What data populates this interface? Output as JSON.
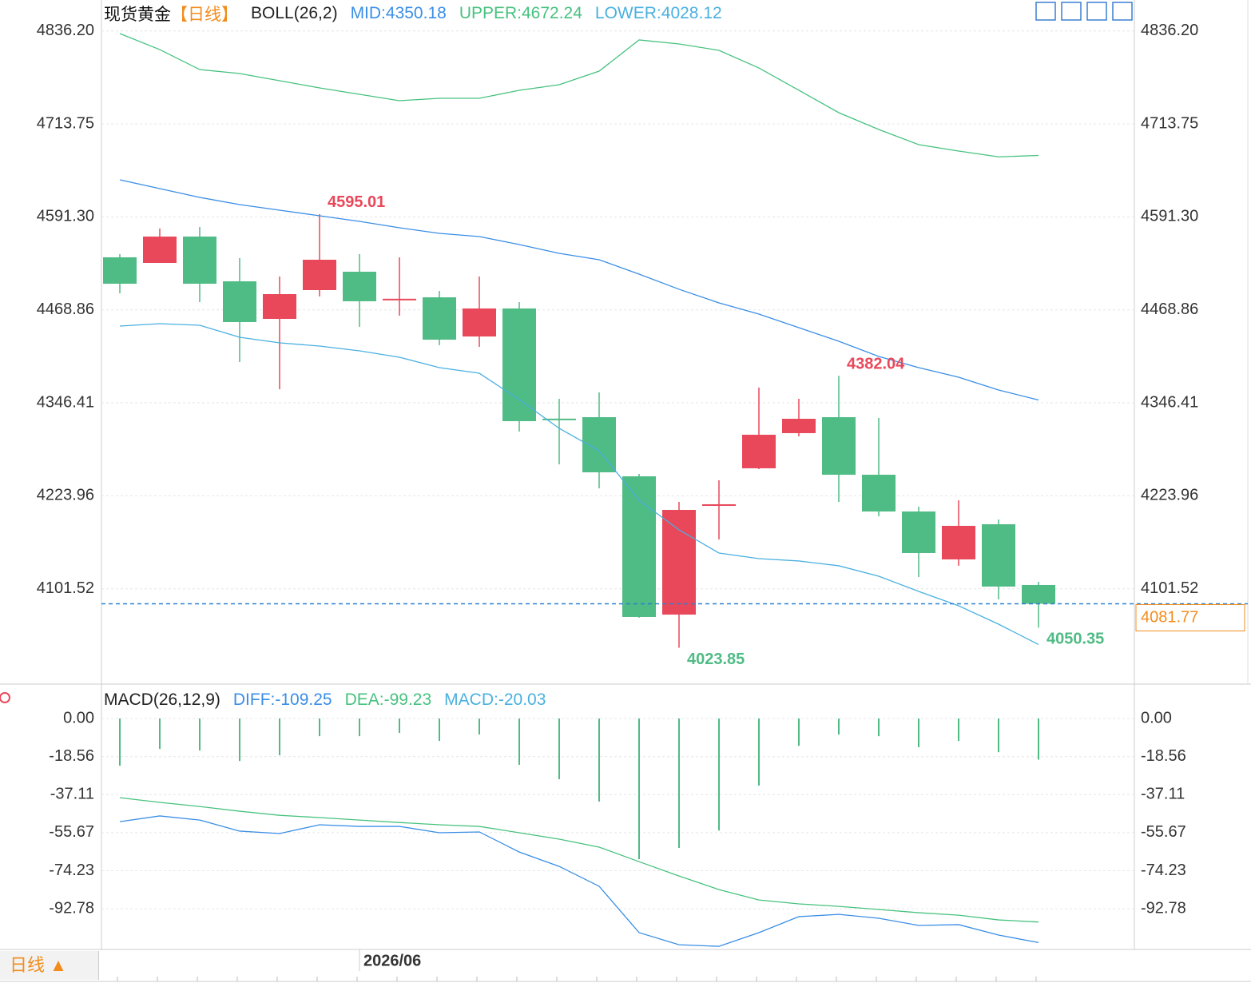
{
  "chart_data": [
    {
      "type": "candlestick",
      "title": "现货黄金",
      "period": "【日线】",
      "indicator": "BOLL(26,2)",
      "categories": [
        null,
        null,
        null,
        null,
        null,
        null,
        "2026/06",
        null,
        null,
        null,
        null,
        null,
        null,
        null,
        null,
        null,
        null,
        null,
        null,
        null,
        null,
        null,
        null,
        null
      ],
      "open": [
        4538.1,
        4530.7,
        4565.4,
        4506.5,
        4457.0,
        4494.9,
        4519.1,
        4483.3,
        4485.4,
        4433.8,
        4470.7,
        4325.6,
        4327.5,
        4249.6,
        4067.5,
        4212.6,
        4260.2,
        4306.5,
        4327.5,
        4251.7,
        4203.3,
        4140.2,
        4186.5,
        4106.5
      ],
      "high": [
        4542.3,
        4576.0,
        4578.1,
        4537.0,
        4512.8,
        4595.01,
        4542.3,
        4538.0,
        4493.8,
        4512.8,
        4479.1,
        4351.7,
        4360.2,
        4252.8,
        4215.9,
        4244.4,
        4366.5,
        4351.7,
        4382.04,
        4326.5,
        4209.6,
        4218.0,
        4192.8,
        4110.7
      ],
      "low": [
        4490.7,
        4530.7,
        4479.1,
        4400.2,
        4364.4,
        4486.5,
        4446.5,
        4461.2,
        4422.3,
        4420.2,
        4308.6,
        4265.4,
        4233.8,
        4063.3,
        4023.85,
        4166.5,
        4259.1,
        4302.3,
        4215.9,
        4197.0,
        4117.0,
        4131.8,
        4087.5,
        4050.35
      ],
      "close": [
        4503.3,
        4565.4,
        4503.3,
        4452.8,
        4489.6,
        4534.9,
        4480.2,
        4483.5,
        4429.6,
        4470.7,
        4322.3,
        4325.4,
        4254.9,
        4064.4,
        4205.4,
        4212.8,
        4304.4,
        4325.4,
        4251.7,
        4203.3,
        4148.6,
        4184.4,
        4104.4,
        4081.77
      ],
      "up_color": "#e8485a",
      "down_color": "#4fbb85",
      "series": [
        {
          "name": "MID:4350.18",
          "color": "#3a8ee6",
          "values": [
            4640.2,
            4628.6,
            4617.0,
            4607.5,
            4600.2,
            4592.8,
            4585.4,
            4577.0,
            4569.6,
            4565.4,
            4554.9,
            4543.3,
            4534.9,
            4515.9,
            4496.0,
            4478.1,
            4463.3,
            4445.4,
            4427.5,
            4407.5,
            4392.8,
            4380.2,
            4363.3,
            4350.18
          ]
        },
        {
          "name": "UPPER:4672.24",
          "color": "#47c27f",
          "values": [
            4832.8,
            4811.7,
            4785.4,
            4780.2,
            4770.7,
            4761.2,
            4752.8,
            4744.4,
            4747.5,
            4747.5,
            4758.1,
            4765.4,
            4783.3,
            4824.4,
            4819.1,
            4810.7,
            4787.5,
            4758.1,
            4728.6,
            4706.5,
            4686.5,
            4678.1,
            4670.4,
            4672.24
          ]
        },
        {
          "name": "LOWER:4028.12",
          "color": "#4ab0e0",
          "values": [
            4447.5,
            4450.7,
            4448.6,
            4432.8,
            4425.4,
            4421.2,
            4414.9,
            4406.5,
            4392.8,
            4385.4,
            4350.7,
            4312.8,
            4283.3,
            4218.1,
            4179.1,
            4148.6,
            4141.2,
            4138.1,
            4131.8,
            4118.1,
            4098.1,
            4079.1,
            4054.9,
            4028.12
          ]
        }
      ],
      "ylim": [
        3977,
        4877
      ],
      "yticks": [
        {
          "value": 4836.2,
          "label": "4836.20"
        },
        4713.75,
        {
          "value": 4591.3,
          "label": "4591.30"
        },
        4468.86,
        4346.41,
        4223.96,
        4101.52
      ],
      "grid": true
    },
    {
      "type": "macd",
      "indicator": "MACD(26,12,9)",
      "histogram": {
        "name": "MACD:-20.03",
        "color": "#4fbb85",
        "up_color": "#e8485a",
        "values": [
          -23.0,
          -14.8,
          -15.6,
          -20.7,
          -17.9,
          -8.6,
          -8.6,
          -7.0,
          -10.9,
          -7.8,
          -22.6,
          -29.6,
          -40.5,
          -68.6,
          -63.1,
          -54.6,
          -32.7,
          -13.3,
          -7.8,
          -8.6,
          -14.0,
          -10.9,
          -16.4,
          -20.03
        ]
      },
      "series": [
        {
          "name": "DIFF:-109.25",
          "color": "#3a8ee6",
          "values": [
            -50.3,
            -47.5,
            -49.5,
            -54.9,
            -56.1,
            -51.8,
            -52.6,
            -52.6,
            -55.7,
            -55.3,
            -65.1,
            -72.1,
            -81.8,
            -104.4,
            -110.3,
            -111.1,
            -104.4,
            -96.6,
            -95.5,
            -97.4,
            -100.9,
            -100.5,
            -105.6,
            -109.25
          ]
        },
        {
          "name": "DEA:-99.23",
          "color": "#47c27f",
          "values": [
            -38.6,
            -40.9,
            -42.9,
            -45.2,
            -47.2,
            -48.3,
            -49.5,
            -50.7,
            -51.8,
            -52.6,
            -55.7,
            -58.8,
            -62.7,
            -69.8,
            -76.8,
            -83.4,
            -88.5,
            -90.4,
            -91.6,
            -93.1,
            -94.7,
            -95.9,
            -98.2,
            -99.23
          ]
        }
      ],
      "ylim": [
        -112.6,
        16.4
      ],
      "yticks": [
        {
          "value": 0,
          "label": "0.00"
        },
        -18.56,
        -37.11,
        -55.67,
        -74.23,
        -92.78
      ],
      "grid": true
    }
  ],
  "period_button": "日线 ▲"
}
